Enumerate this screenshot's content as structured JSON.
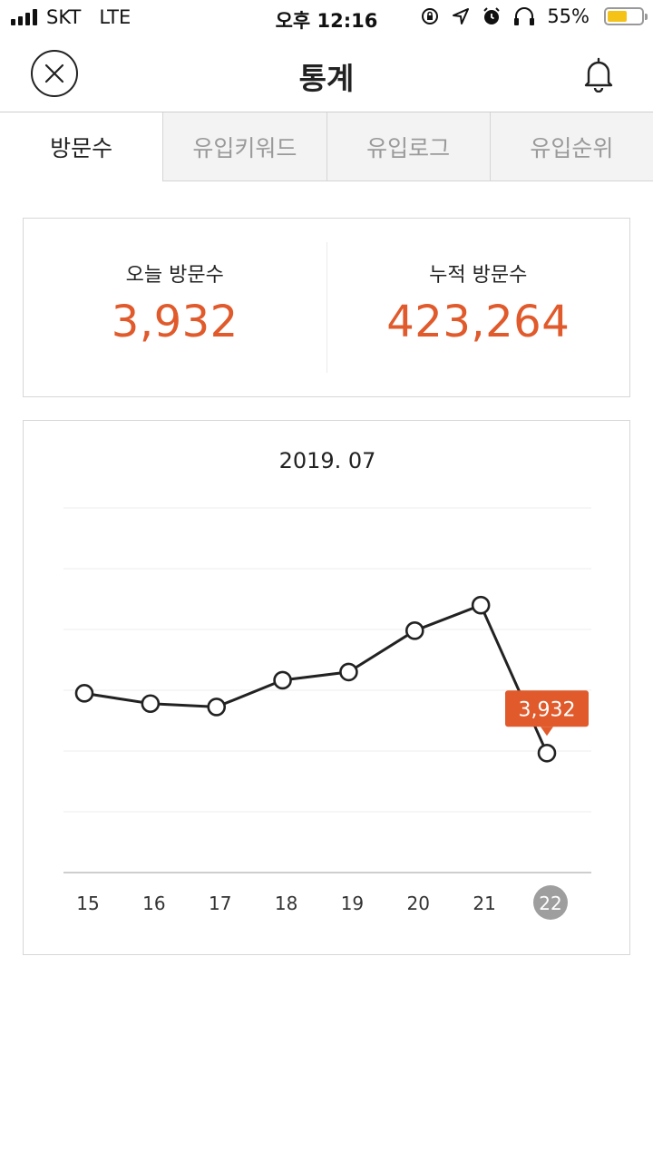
{
  "status_bar": {
    "carrier": "SKT",
    "network": "LTE",
    "time": "오후 12:16",
    "battery": "55%",
    "battery_level": 0.55,
    "icons": [
      "signal-icon",
      "orientation-lock-icon",
      "location-icon",
      "alarm-icon",
      "headphones-icon",
      "battery-icon"
    ]
  },
  "header": {
    "title": "통계",
    "close_icon": "close-icon",
    "bell_icon": "bell-icon"
  },
  "tabs": [
    {
      "label": "방문수",
      "active": true
    },
    {
      "label": "유입키워드",
      "active": false
    },
    {
      "label": "유입로그",
      "active": false
    },
    {
      "label": "유입순위",
      "active": false
    }
  ],
  "stats": {
    "today_label": "오늘 방문수",
    "today_value": "3,932",
    "total_label": "누적 방문수",
    "total_value": "423,264"
  },
  "colors": {
    "accent": "#e05a2b",
    "line": "#222222",
    "selected_day": "#9e9e9e"
  },
  "chart_data": {
    "type": "line",
    "title": "2019. 07",
    "categories": [
      "15",
      "16",
      "17",
      "18",
      "19",
      "20",
      "21",
      "22"
    ],
    "series": [
      {
        "values": [
          5900,
          5560,
          5450,
          6330,
          6600,
          7960,
          8800,
          3932
        ]
      }
    ],
    "ylim": [
      0,
      12000
    ],
    "grid": true,
    "selected_index": 7,
    "tooltip": "3,932"
  }
}
